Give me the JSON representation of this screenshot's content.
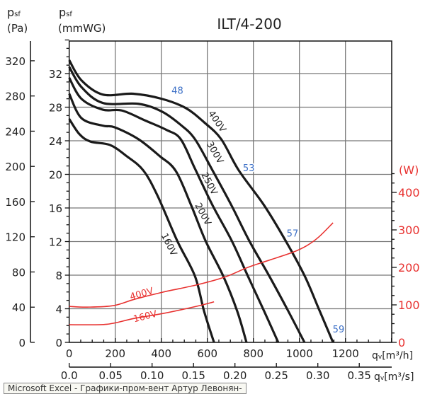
{
  "chart_data": {
    "type": "line",
    "title": "ILT/4-200",
    "x_axis": {
      "label_main": "q",
      "label_sub": "v",
      "label_unit": "[m³/h]",
      "range": [
        0,
        1400
      ],
      "ticks": [
        0,
        200,
        400,
        600,
        800,
        1000,
        1200
      ]
    },
    "x2_axis": {
      "label_main": "q",
      "label_sub": "v",
      "label_unit": "[m³/s]",
      "ticks": [
        "0.0",
        "0.05",
        "0.10",
        "0.15",
        "0.20",
        "0.25",
        "0.30",
        "0.35"
      ]
    },
    "y_axis_pa": {
      "label_main": "p",
      "label_sub": "sf",
      "unit": "(Pa)",
      "range": [
        0,
        340
      ],
      "ticks": [
        0,
        40,
        80,
        120,
        160,
        200,
        240,
        280,
        320
      ]
    },
    "y_axis_mmwg": {
      "label_main": "p",
      "label_sub": "sf",
      "unit": "(mmWG)",
      "range": [
        0,
        36
      ],
      "ticks": [
        0,
        4,
        8,
        12,
        16,
        20,
        24,
        28,
        32
      ]
    },
    "y_axis_w": {
      "unit": "(W)",
      "range": [
        0,
        450
      ],
      "ticks": [
        0,
        100,
        200,
        300,
        400
      ],
      "color": "#e8312f"
    },
    "grid": true,
    "pressure_series": [
      {
        "name": "400V",
        "x": [
          0,
          53,
          146,
          278,
          401,
          506,
          586,
          660,
          736,
          847,
          940,
          1023,
          1084,
          1146
        ],
        "y": [
          33.6,
          31.2,
          29.5,
          29.6,
          29.0,
          27.9,
          26.2,
          24.2,
          20.5,
          16.3,
          12.1,
          7.9,
          4.0,
          0
        ]
      },
      {
        "name": "300V",
        "x": [
          0,
          53,
          146,
          300,
          401,
          484,
          546,
          622,
          705,
          782,
          869,
          952,
          1022
        ],
        "y": [
          32.8,
          30.4,
          28.5,
          28.4,
          27.5,
          25.9,
          24.2,
          20.5,
          16.3,
          12.1,
          7.9,
          3.7,
          0
        ]
      },
      {
        "name": "250V",
        "x": [
          0,
          53,
          146,
          229,
          331,
          422,
          484,
          546,
          623,
          706,
          776,
          847,
          908
        ],
        "y": [
          31.5,
          29.0,
          27.7,
          27.6,
          26.4,
          25.3,
          24.2,
          20.7,
          16.3,
          12.1,
          7.9,
          3.7,
          0
        ]
      },
      {
        "name": "200V",
        "x": [
          0,
          53,
          146,
          198,
          300,
          392,
          463,
          530,
          592,
          669,
          730,
          770
        ],
        "y": [
          29.6,
          26.7,
          25.8,
          25.6,
          24.2,
          22.2,
          20.4,
          16.3,
          12.1,
          7.9,
          3.7,
          0
        ]
      },
      {
        "name": "160V",
        "x": [
          0,
          44,
          93,
          177,
          248,
          321,
          383,
          469,
          546,
          586,
          629
        ],
        "y": [
          26.6,
          24.8,
          23.9,
          23.5,
          22.2,
          20.5,
          17.5,
          12.1,
          7.9,
          3.7,
          0
        ]
      }
    ],
    "power_series": [
      {
        "name": "400V",
        "x": [
          0,
          78,
          192,
          284,
          407,
          552,
          675,
          776,
          868,
          970,
          1032,
          1084,
          1146
        ],
        "y": [
          96,
          94,
          98,
          115,
          134,
          153,
          174,
          200,
          219,
          240,
          258,
          281,
          319
        ]
      },
      {
        "name": "160V",
        "x": [
          0,
          130,
          192,
          284,
          407,
          552,
          629
        ],
        "y": [
          47,
          47,
          51,
          64,
          77,
          96,
          108
        ]
      }
    ],
    "noise_labels": [
      {
        "text": "48",
        "q": 470,
        "p": 29.6
      },
      {
        "text": "53",
        "q": 780,
        "p": 20.4
      },
      {
        "text": "57",
        "q": 970,
        "p": 12.6
      },
      {
        "text": "59",
        "q": 1170,
        "p": 1.2
      }
    ],
    "pressure_color": "#1a1a1a",
    "power_color": "#e8312f",
    "noise_color": "#3b6fc6"
  },
  "tooltip": "Microsoft Excel - Графики-пром-вент  Артур  Левонян-"
}
